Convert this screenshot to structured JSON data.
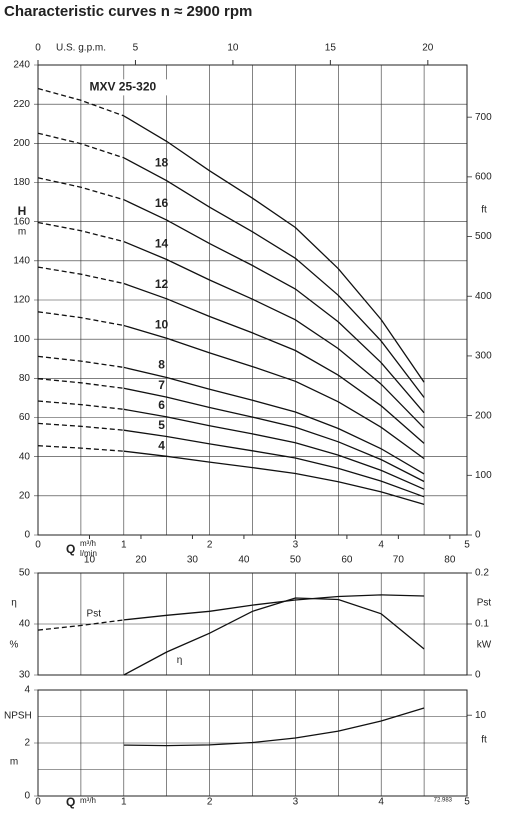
{
  "chart_data": [
    {
      "type": "line",
      "title": "Characteristic curves n ≈ 2900 rpm",
      "y_label": "H",
      "y_unit": "m",
      "y2_unit": "ft",
      "x_label": "Q",
      "x_unit": "m³/h",
      "x2_unit": "l/min",
      "x3_label": "U.S. g.p.m.",
      "xlim": [
        0,
        5
      ],
      "xticks": [
        0,
        1,
        2,
        3,
        4,
        5
      ],
      "xgrid": [
        0.5,
        1.5,
        2.5,
        3.5,
        4.5
      ],
      "x2lim": [
        0,
        83.33
      ],
      "x2ticks": [
        0,
        10,
        20,
        30,
        40,
        50,
        60,
        70,
        80
      ],
      "x3lim": [
        0,
        22.01
      ],
      "x3ticks": [
        0,
        5,
        10,
        15,
        20
      ],
      "ylim": [
        0,
        240
      ],
      "yticks": [
        0,
        20,
        40,
        60,
        80,
        100,
        120,
        140,
        160,
        180,
        200,
        220,
        240
      ],
      "y2lim": [
        0,
        787.4
      ],
      "y2ticks": [
        0,
        100,
        200,
        300,
        400,
        500,
        600,
        700
      ],
      "grid": true,
      "dashed_range": [
        0,
        1
      ],
      "x": [
        0,
        0.5,
        1,
        1.5,
        2,
        2.5,
        3,
        3.5,
        4,
        4.5
      ],
      "series": [
        {
          "name": "4",
          "color": "#111",
          "values": [
            45.6,
            44.4,
            42.8,
            40.2,
            37.2,
            34.4,
            31.4,
            27.2,
            22,
            15.6
          ]
        },
        {
          "name": "5",
          "color": "#111",
          "values": [
            57,
            55.5,
            53.5,
            50.3,
            46.5,
            43,
            39.3,
            34,
            27.5,
            19.5
          ]
        },
        {
          "name": "6",
          "color": "#111",
          "values": [
            68.4,
            66.6,
            64.2,
            60.3,
            55.8,
            51.6,
            47.1,
            40.8,
            33,
            23.4
          ]
        },
        {
          "name": "7",
          "color": "#111",
          "values": [
            79.8,
            77.7,
            74.9,
            70.4,
            65.1,
            60.2,
            55,
            47.6,
            38.5,
            27.3
          ]
        },
        {
          "name": "8",
          "color": "#111",
          "values": [
            91.2,
            88.8,
            85.6,
            80.4,
            74.4,
            68.8,
            62.8,
            54.4,
            44,
            31.2
          ]
        },
        {
          "name": "10",
          "color": "#111",
          "values": [
            114,
            111,
            107,
            100.5,
            93,
            86,
            78.5,
            68,
            55,
            39
          ]
        },
        {
          "name": "12",
          "color": "#111",
          "values": [
            136.8,
            133.2,
            128.4,
            120.6,
            111.6,
            103.2,
            94.2,
            81.6,
            66,
            46.8
          ]
        },
        {
          "name": "14",
          "color": "#111",
          "values": [
            159.6,
            155.4,
            149.8,
            140.7,
            130.2,
            120.4,
            109.9,
            95.2,
            77,
            54.6
          ]
        },
        {
          "name": "16",
          "color": "#111",
          "values": [
            182.4,
            177.6,
            171.2,
            160.8,
            148.8,
            137.6,
            125.6,
            108.8,
            88,
            62.4
          ]
        },
        {
          "name": "18",
          "color": "#111",
          "values": [
            205.2,
            199.8,
            192.6,
            180.9,
            167.4,
            154.8,
            141.3,
            122.4,
            99,
            70.2
          ]
        },
        {
          "name": "MXV 25-320",
          "color": "#111",
          "values": [
            228,
            222,
            214,
            201,
            186,
            172,
            157,
            136,
            110,
            78
          ]
        }
      ]
    },
    {
      "type": "line",
      "y_label": "η",
      "y_unit": "%",
      "y2_label": "Pst",
      "y2_unit": "kW",
      "xlim": [
        0,
        5
      ],
      "xgrid": [
        0.5,
        1,
        1.5,
        2,
        2.5,
        3,
        3.5,
        4,
        4.5
      ],
      "ylim": [
        30,
        50
      ],
      "yticks": [
        30,
        40,
        50
      ],
      "y2lim": [
        0,
        0.2
      ],
      "y2ticks": [
        0,
        0.1,
        0.2
      ],
      "grid": true,
      "dashed_range": [
        0,
        1
      ],
      "series": [
        {
          "name": "Pst",
          "color": "#111",
          "axis": "y2",
          "x": [
            0,
            0.5,
            1,
            1.5,
            2,
            2.5,
            3,
            3.5,
            4,
            4.5
          ],
          "values": [
            0.088,
            0.097,
            0.108,
            0.117,
            0.125,
            0.137,
            0.147,
            0.154,
            0.157,
            0.155
          ]
        },
        {
          "name": "η",
          "color": "#111",
          "x": [
            1,
            1.5,
            2,
            2.5,
            3,
            3.5,
            4,
            4.5
          ],
          "values": [
            30,
            34.5,
            38.2,
            42.5,
            45.1,
            44.8,
            42,
            35.1
          ]
        }
      ]
    },
    {
      "type": "line",
      "y_label": "NPSH",
      "y_unit": "m",
      "y2_unit": "ft",
      "x_label": "Q",
      "x_unit": "m³/h",
      "note": "72.983",
      "xlim": [
        0,
        5
      ],
      "xticks": [
        0,
        1,
        2,
        3,
        4,
        5
      ],
      "xgrid": [
        0.5,
        1.5,
        2.5,
        3.5,
        4.5
      ],
      "ylim": [
        0,
        4
      ],
      "yticks": [
        0,
        2,
        4
      ],
      "ygrid": [
        1,
        3
      ],
      "y2lim": [
        0,
        13.12
      ],
      "y2ticks": [
        10
      ],
      "grid": true,
      "series": [
        {
          "name": "NPSH",
          "color": "#111",
          "x": [
            1,
            1.5,
            2,
            2.5,
            3,
            3.5,
            4,
            4.5
          ],
          "values": [
            1.92,
            1.9,
            1.93,
            2.02,
            2.19,
            2.45,
            2.83,
            3.32
          ]
        }
      ]
    }
  ]
}
